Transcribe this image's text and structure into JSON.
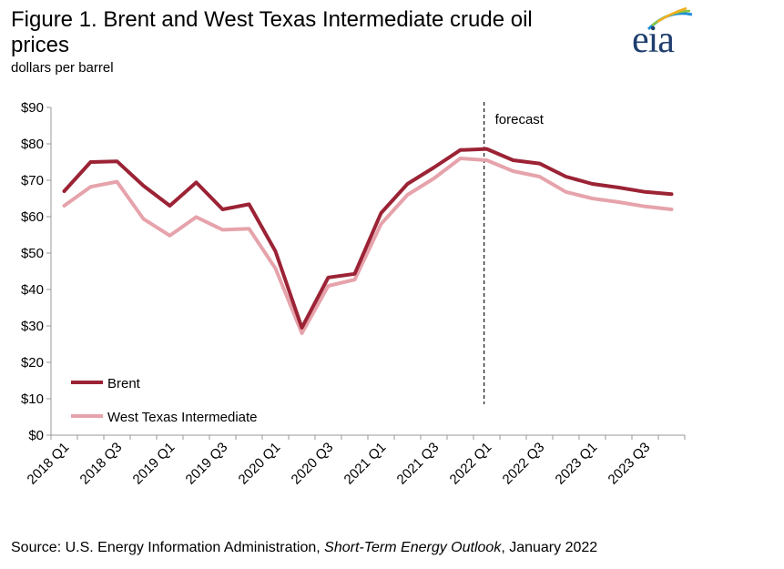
{
  "title": "Figure 1. Brent and West Texas Intermediate crude oil prices",
  "subtitle": "dollars per barrel",
  "source_prefix": "Source: U.S. Energy Information Administration, ",
  "source_italic": "Short-Term Energy Outlook",
  "source_suffix": ", January 2022",
  "logo_text": "eia",
  "chart_data": {
    "type": "line",
    "title": "Figure 1. Brent and West Texas Intermediate crude oil prices",
    "ylabel": "dollars per barrel",
    "xlabel": "",
    "x": [
      "2018 Q1",
      "2018 Q2",
      "2018 Q3",
      "2018 Q4",
      "2019 Q1",
      "2019 Q2",
      "2019 Q3",
      "2019 Q4",
      "2020 Q1",
      "2020 Q2",
      "2020 Q3",
      "2020 Q4",
      "2021 Q1",
      "2021 Q2",
      "2021 Q3",
      "2021 Q4",
      "2022 Q1",
      "2022 Q2",
      "2022 Q3",
      "2022 Q4",
      "2023 Q1",
      "2023 Q2",
      "2023 Q3",
      "2023 Q4"
    ],
    "x_tick_labels": [
      "2018 Q1",
      "2018 Q3",
      "2019 Q1",
      "2019 Q3",
      "2020 Q1",
      "2020 Q3",
      "2021 Q1",
      "2021 Q3",
      "2022 Q1",
      "2022 Q3",
      "2023 Q1",
      "2023 Q3"
    ],
    "ylim": [
      0,
      90
    ],
    "y_ticks": [
      "$0",
      "$10",
      "$20",
      "$30",
      "$40",
      "$50",
      "$60",
      "$70",
      "$80",
      "$90"
    ],
    "series": [
      {
        "name": "Brent",
        "color": "#9b2335",
        "values": [
          67,
          75,
          75.2,
          68.5,
          63,
          69.4,
          62,
          63.4,
          50.5,
          29.5,
          43.3,
          44.3,
          61,
          69,
          73.5,
          78.3,
          78.6,
          75.5,
          74.6,
          71,
          69,
          68,
          66.8,
          66.2
        ]
      },
      {
        "name": "West Texas Intermediate",
        "color": "#e6a3ab",
        "values": [
          63,
          68.2,
          69.6,
          59.4,
          54.8,
          59.9,
          56.4,
          56.7,
          45.8,
          28,
          41,
          42.7,
          58,
          66,
          70.5,
          76,
          75.5,
          72.5,
          71,
          66.8,
          65,
          64,
          62.8,
          62
        ]
      }
    ],
    "annotation": "forecast",
    "forecast_start": "2022 Q1",
    "legend_placement": "bottom-left",
    "grid": false
  }
}
